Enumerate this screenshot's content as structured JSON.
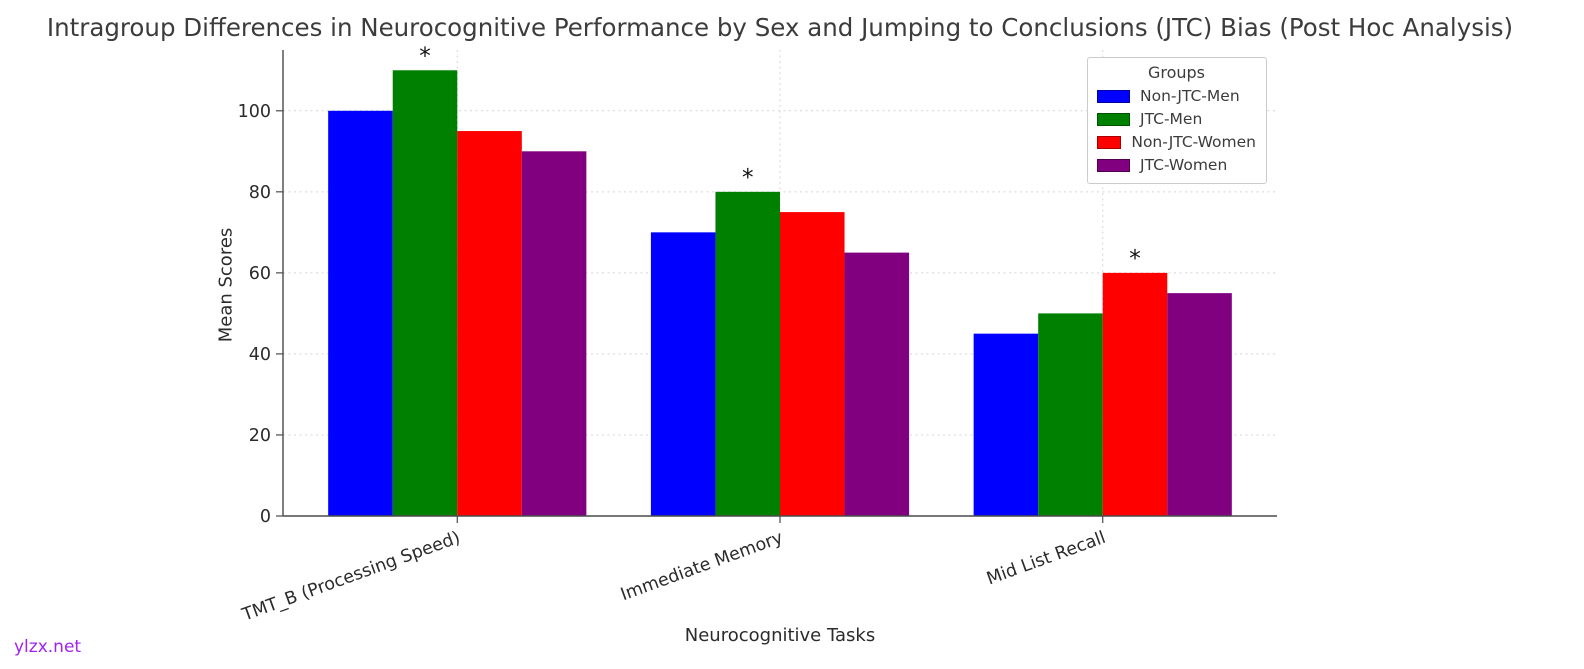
{
  "watermark": "ylzx.net",
  "chart_data": {
    "type": "bar",
    "title": "Intragroup Differences in Neurocognitive Performance by Sex and Jumping to Conclusions (JTC) Bias (Post Hoc Analysis)",
    "xlabel": "Neurocognitive Tasks",
    "ylabel": "Mean Scores",
    "categories": [
      "TMT_B (Processing Speed)",
      "Immediate Memory",
      "Mid List Recall"
    ],
    "series": [
      {
        "name": "Non-JTC-Men",
        "color": "#0000ff",
        "values": [
          100,
          70,
          45
        ]
      },
      {
        "name": "JTC-Men",
        "color": "#008000",
        "values": [
          110,
          80,
          50
        ]
      },
      {
        "name": "Non-JTC-Women",
        "color": "#ff0000",
        "values": [
          95,
          75,
          60
        ]
      },
      {
        "name": "JTC-Women",
        "color": "#800080",
        "values": [
          90,
          65,
          55
        ]
      }
    ],
    "yticks": [
      0,
      20,
      40,
      60,
      80,
      100
    ],
    "ylim": [
      0,
      115
    ],
    "grid": true,
    "xtick_rotation_deg": 20,
    "legend": {
      "title": "Groups",
      "position": "upper right"
    },
    "annotations": [
      {
        "category_index": 0,
        "series_index": 1,
        "symbol": "*"
      },
      {
        "category_index": 1,
        "series_index": 1,
        "symbol": "*"
      },
      {
        "category_index": 2,
        "series_index": 2,
        "symbol": "*"
      }
    ]
  }
}
